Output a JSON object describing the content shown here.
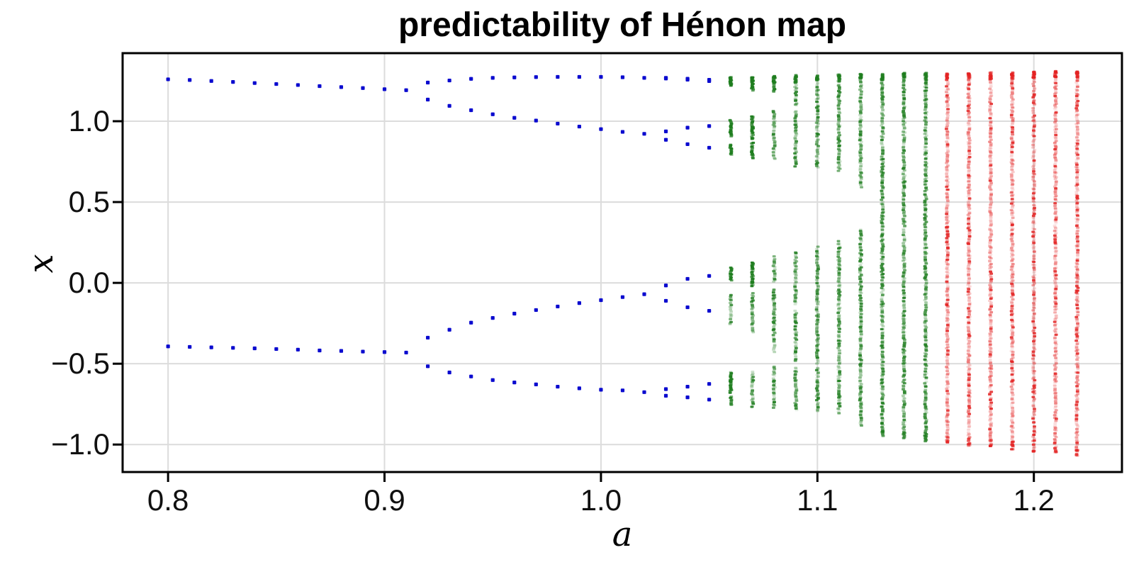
{
  "figure": {
    "background": "#ffffff",
    "spine_color": "#000000",
    "grid_color": "#dcdcdc"
  },
  "chart_data": {
    "type": "scatter",
    "subtype": "bifurcation-diagram",
    "title": "predictability of Hénon map",
    "xlabel": "a",
    "ylabel": "x",
    "xlim": [
      0.779,
      1.2407
    ],
    "ylim": [
      -1.17,
      1.421
    ],
    "grid": true,
    "xticks": [
      {
        "v": 0.8,
        "label": "0.8"
      },
      {
        "v": 0.9,
        "label": "0.9"
      },
      {
        "v": 1.0,
        "label": "1.0"
      },
      {
        "v": 1.1,
        "label": "1.1"
      },
      {
        "v": 1.2,
        "label": "1.2"
      }
    ],
    "yticks": [
      {
        "v": 1.0,
        "label": "1.0"
      },
      {
        "v": 0.5,
        "label": "0.5"
      },
      {
        "v": 0.0,
        "label": "0.0"
      },
      {
        "v": -0.5,
        "label": "−0.5"
      },
      {
        "v": -1.0,
        "label": "−1.0"
      }
    ],
    "colors": {
      "periodic_blue": "#0b0bcf",
      "intermediate_green": "#1e7d1e",
      "chaotic_red": "#e32222"
    },
    "periodic_columns": [
      {
        "a": 0.8,
        "points": [
          1.259,
          -0.393
        ]
      },
      {
        "a": 0.81,
        "points": [
          1.255,
          -0.396
        ]
      },
      {
        "a": 0.82,
        "points": [
          1.249,
          -0.399
        ]
      },
      {
        "a": 0.83,
        "points": [
          1.243,
          -0.402
        ]
      },
      {
        "a": 0.84,
        "points": [
          1.236,
          -0.405
        ]
      },
      {
        "a": 0.85,
        "points": [
          1.23,
          -0.409
        ]
      },
      {
        "a": 0.86,
        "points": [
          1.224,
          -0.413
        ]
      },
      {
        "a": 0.87,
        "points": [
          1.217,
          -0.418
        ]
      },
      {
        "a": 0.88,
        "points": [
          1.211,
          -0.421
        ]
      },
      {
        "a": 0.89,
        "points": [
          1.205,
          -0.425
        ]
      },
      {
        "a": 0.9,
        "points": [
          1.198,
          -0.428
        ]
      },
      {
        "a": 0.91,
        "points": [
          1.192,
          -0.431
        ]
      },
      {
        "a": 0.92,
        "points": [
          1.239,
          1.134,
          -0.339,
          -0.516
        ]
      },
      {
        "a": 0.93,
        "points": [
          1.252,
          1.095,
          -0.29,
          -0.554
        ]
      },
      {
        "a": 0.94,
        "points": [
          1.262,
          1.068,
          -0.246,
          -0.579
        ]
      },
      {
        "a": 0.95,
        "points": [
          1.268,
          1.043,
          -0.217,
          -0.601
        ]
      },
      {
        "a": 0.96,
        "points": [
          1.271,
          1.021,
          -0.19,
          -0.616
        ]
      },
      {
        "a": 0.97,
        "points": [
          1.273,
          1.004,
          -0.168,
          -0.628
        ]
      },
      {
        "a": 0.98,
        "points": [
          1.274,
          0.985,
          -0.146,
          -0.642
        ]
      },
      {
        "a": 0.99,
        "points": [
          1.274,
          0.967,
          -0.125,
          -0.652
        ]
      },
      {
        "a": 1.0,
        "points": [
          1.274,
          0.951,
          -0.107,
          -0.661
        ]
      },
      {
        "a": 1.01,
        "points": [
          1.272,
          0.934,
          -0.088,
          -0.665
        ]
      },
      {
        "a": 1.02,
        "points": [
          1.268,
          0.922,
          -0.07,
          -0.676
        ]
      },
      {
        "a": 1.03,
        "points": [
          1.268,
          1.264,
          0.937,
          0.885,
          -0.016,
          -0.111,
          -0.657,
          -0.698
        ]
      },
      {
        "a": 1.04,
        "points": [
          1.263,
          1.257,
          0.96,
          0.858,
          0.025,
          -0.151,
          -0.642,
          -0.708
        ]
      },
      {
        "a": 1.05,
        "points": [
          1.256,
          1.248,
          0.97,
          0.836,
          0.043,
          -0.173,
          -0.625,
          -0.722
        ]
      }
    ],
    "band_columns": [
      {
        "a": 1.06,
        "color": "green",
        "segments": [
          [
            1.275,
            1.215
          ],
          [
            1.01,
            0.9
          ],
          [
            0.86,
            0.79
          ],
          [
            0.095,
            0.015
          ],
          [
            -0.07,
            -0.26
          ],
          [
            -0.55,
            -0.68
          ],
          [
            -0.7,
            -0.76
          ]
        ]
      },
      {
        "a": 1.07,
        "color": "green",
        "segments": [
          [
            1.275,
            1.185
          ],
          [
            1.035,
            0.885
          ],
          [
            0.87,
            0.77
          ],
          [
            0.13,
            -0.02
          ],
          [
            -0.06,
            -0.31
          ],
          [
            -0.545,
            -0.775
          ]
        ]
      },
      {
        "a": 1.08,
        "color": "green",
        "segments": [
          [
            1.28,
            1.18
          ],
          [
            1.07,
            0.76
          ],
          [
            0.165,
            0.0
          ],
          [
            -0.04,
            -0.43
          ],
          [
            -0.51,
            -0.775
          ]
        ]
      },
      {
        "a": 1.09,
        "color": "green",
        "segments": [
          [
            1.285,
            1.09
          ],
          [
            1.07,
            0.72
          ],
          [
            0.195,
            -0.135
          ],
          [
            -0.17,
            -0.49
          ],
          [
            -0.52,
            -0.79
          ]
        ]
      },
      {
        "a": 1.1,
        "color": "green",
        "segments": [
          [
            1.285,
            0.71
          ],
          [
            0.225,
            -0.5
          ],
          [
            -0.52,
            -0.8
          ]
        ]
      },
      {
        "a": 1.11,
        "color": "green",
        "segments": [
          [
            1.29,
            0.69
          ],
          [
            0.26,
            -0.81
          ]
        ]
      },
      {
        "a": 1.12,
        "color": "green",
        "segments": [
          [
            1.3,
            0.59
          ],
          [
            0.335,
            -0.89
          ]
        ]
      },
      {
        "a": 1.13,
        "color": "green",
        "segments": [
          [
            1.3,
            -0.95
          ]
        ]
      },
      {
        "a": 1.14,
        "color": "green",
        "segments": [
          [
            1.3,
            -0.96
          ]
        ]
      },
      {
        "a": 1.15,
        "color": "green",
        "segments": [
          [
            1.3,
            -0.98
          ]
        ]
      },
      {
        "a": 1.16,
        "color": "red",
        "segments": [
          [
            1.295,
            -0.99
          ]
        ]
      },
      {
        "a": 1.17,
        "color": "red",
        "segments": [
          [
            1.3,
            -1.01
          ]
        ]
      },
      {
        "a": 1.18,
        "color": "red",
        "segments": [
          [
            1.305,
            -1.01
          ]
        ]
      },
      {
        "a": 1.19,
        "color": "red",
        "segments": [
          [
            1.305,
            -1.03
          ]
        ]
      },
      {
        "a": 1.2,
        "color": "red",
        "segments": [
          [
            1.31,
            -1.05
          ]
        ]
      },
      {
        "a": 1.21,
        "color": "red",
        "segments": [
          [
            1.31,
            -1.05
          ]
        ]
      },
      {
        "a": 1.22,
        "color": "red",
        "segments": [
          [
            1.315,
            -1.07
          ]
        ]
      }
    ]
  }
}
